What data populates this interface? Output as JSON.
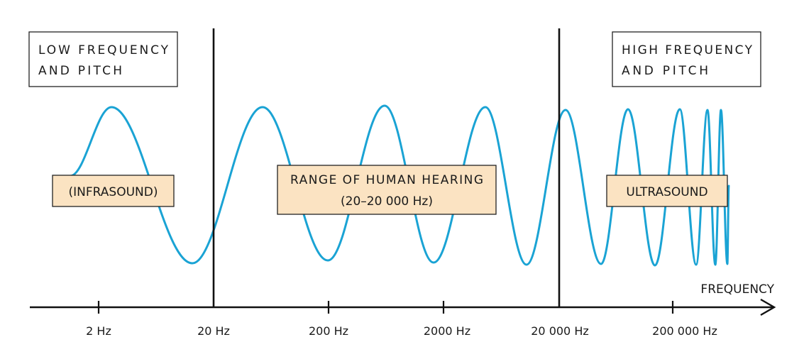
{
  "colors": {
    "wave": "#1aa3d4",
    "label_fill": "#fbe3c2",
    "ink": "#111111"
  },
  "boxes": {
    "low": {
      "line1": "LOW FREQUENCY",
      "line2": "AND PITCH"
    },
    "high": {
      "line1": "HIGH FREQUENCY",
      "line2": "AND PITCH"
    },
    "infrasound": "(INFRASOUND)",
    "human_range": {
      "line1": "RANGE OF HUMAN HEARING",
      "line2": "(20–20 000 Hz)"
    },
    "ultrasound": "ULTRASOUND"
  },
  "axis": {
    "label": "FREQUENCY",
    "ticks": [
      "2 Hz",
      "20 Hz",
      "200 Hz",
      "2000 Hz",
      "20 000 Hz",
      "200 000 Hz"
    ]
  }
}
